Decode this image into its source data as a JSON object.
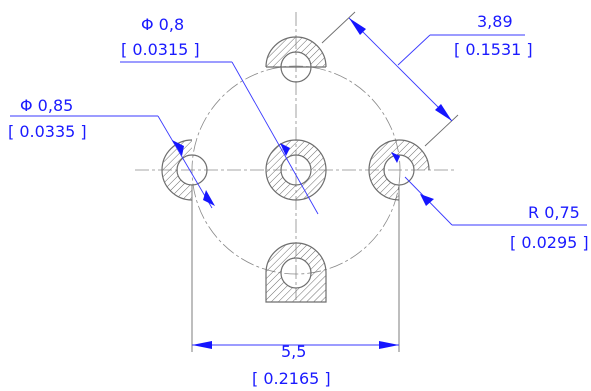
{
  "colors": {
    "dimension": "#1a1aff",
    "geometry": "#6e6e6e",
    "background": "#ffffff"
  },
  "dimensions": {
    "top_hole_diameter": {
      "metric": "Φ 0,8",
      "imperial": "[ 0.0315 ]"
    },
    "left_hole_diameter": {
      "metric": "Φ 0,85",
      "imperial": "[ 0.0335 ]"
    },
    "diagonal_distance": {
      "metric": "3,89",
      "imperial": "[ 0.1531 ]"
    },
    "right_hole_radius": {
      "metric": "R 0,75",
      "imperial": "[ 0.0295 ]"
    },
    "horizontal_distance": {
      "metric": "5,5",
      "imperial": "[ 0.2165 ]"
    }
  }
}
